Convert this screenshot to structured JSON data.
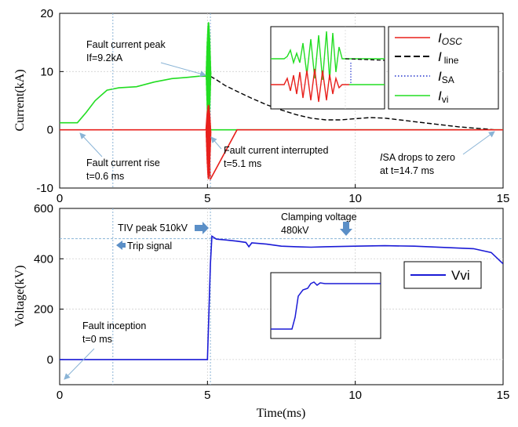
{
  "chart_data": [
    {
      "type": "line",
      "ylabel": "Current(kA)",
      "ylim": [
        -10,
        20
      ],
      "xlim": [
        0,
        15
      ],
      "x_ticks": [
        "0",
        "5",
        "10",
        "15"
      ],
      "y_ticks": [
        "-10",
        "0",
        "10",
        "20"
      ],
      "grid": true,
      "legend": {
        "placement": "top-right",
        "entries": [
          {
            "main": "I",
            "sub": "OSC",
            "color": "#e8201c",
            "style": "solid"
          },
          {
            "main": "I",
            "sub": "line",
            "color": "#000000",
            "style": "dashed"
          },
          {
            "main": "I",
            "sub": "SA",
            "color": "#2233cc",
            "style": "dotted"
          },
          {
            "main": "I",
            "sub": "vi",
            "color": "#22dd22",
            "style": "solid"
          }
        ]
      },
      "series": [
        {
          "key": "vi",
          "color": "#22dd22",
          "x": [
            0,
            0.6,
            0.9,
            1.2,
            1.6,
            2.0,
            2.6,
            3.2,
            3.8,
            4.3,
            4.7,
            5.0,
            5.1,
            5.2,
            6,
            7,
            8,
            9,
            10,
            11,
            12,
            13,
            14,
            14.7,
            15
          ],
          "values": [
            1.2,
            1.2,
            3,
            5,
            6.8,
            7.2,
            7.4,
            8.2,
            8.8,
            9.0,
            9.2,
            9.2,
            0,
            0,
            0,
            0,
            0,
            0,
            0,
            0,
            0,
            0,
            0,
            0,
            0
          ]
        },
        {
          "key": "line",
          "color": "#000000",
          "x": [
            5.1,
            5.3,
            5.6,
            6,
            6.5,
            7,
            7.5,
            8,
            8.5,
            9,
            9.5,
            10,
            10.5,
            11,
            11.5,
            12,
            12.5,
            13,
            13.5,
            14,
            14.5,
            14.7,
            15
          ],
          "values": [
            9.2,
            8.6,
            7.6,
            6.6,
            5.4,
            4.3,
            3.4,
            2.6,
            2.0,
            1.7,
            1.7,
            1.9,
            2.1,
            2.0,
            1.7,
            1.4,
            1.1,
            0.8,
            0.5,
            0.3,
            0.1,
            0,
            0
          ]
        },
        {
          "key": "osc",
          "color": "#e8201c",
          "x": [
            0,
            4.95,
            5.0,
            5.1,
            6,
            10,
            15
          ],
          "values": [
            0,
            0,
            3.5,
            -8.5,
            0,
            0,
            0
          ]
        }
      ],
      "annotations": [
        {
          "lines": [
            "Fault current peak",
            "If=9.2kA"
          ]
        },
        {
          "lines": [
            "Fault current rise",
            "t=0.6 ms"
          ]
        },
        {
          "lines": [
            "Fault current interrupted",
            "t=5.1 ms"
          ]
        },
        {
          "lines": [
            "SA drops to zero",
            "at t=14.7 ms"
          ],
          "prefix": "I"
        }
      ]
    },
    {
      "type": "line",
      "ylabel": "Voltage(kV)",
      "xlabel": "Time(ms)",
      "ylim": [
        -100,
        600
      ],
      "xlim": [
        0,
        15
      ],
      "x_ticks": [
        "0",
        "5",
        "10",
        "15"
      ],
      "y_ticks": [
        "0",
        "200",
        "400",
        "600"
      ],
      "grid": true,
      "legend": {
        "placement": "right",
        "entries": [
          {
            "label": "Vvi",
            "color": "#1a1ad6",
            "style": "solid"
          }
        ]
      },
      "series": [
        {
          "name": "Vvi",
          "color": "#1a1ad6",
          "x": [
            0,
            5.0,
            5.1,
            5.15,
            5.3,
            5.6,
            6,
            6.3,
            6.4,
            6.5,
            7,
            7.5,
            8,
            8.5,
            9,
            10,
            11,
            12,
            13,
            14,
            14.6,
            15
          ],
          "values": [
            0,
            0,
            380,
            490,
            478,
            475,
            470,
            465,
            448,
            463,
            458,
            450,
            448,
            446,
            448,
            450,
            452,
            450,
            445,
            440,
            425,
            380
          ]
        }
      ],
      "reference_lines": {
        "voltage": 480,
        "time_trip": 1.8
      },
      "annotations": [
        {
          "lines": [
            "TIV peak 510kV"
          ]
        },
        {
          "lines": [
            "Trip signal"
          ]
        },
        {
          "lines": [
            "Clamping voltage",
            "480kV"
          ]
        },
        {
          "lines": [
            "Fault inception",
            "t=0 ms"
          ]
        }
      ]
    }
  ]
}
